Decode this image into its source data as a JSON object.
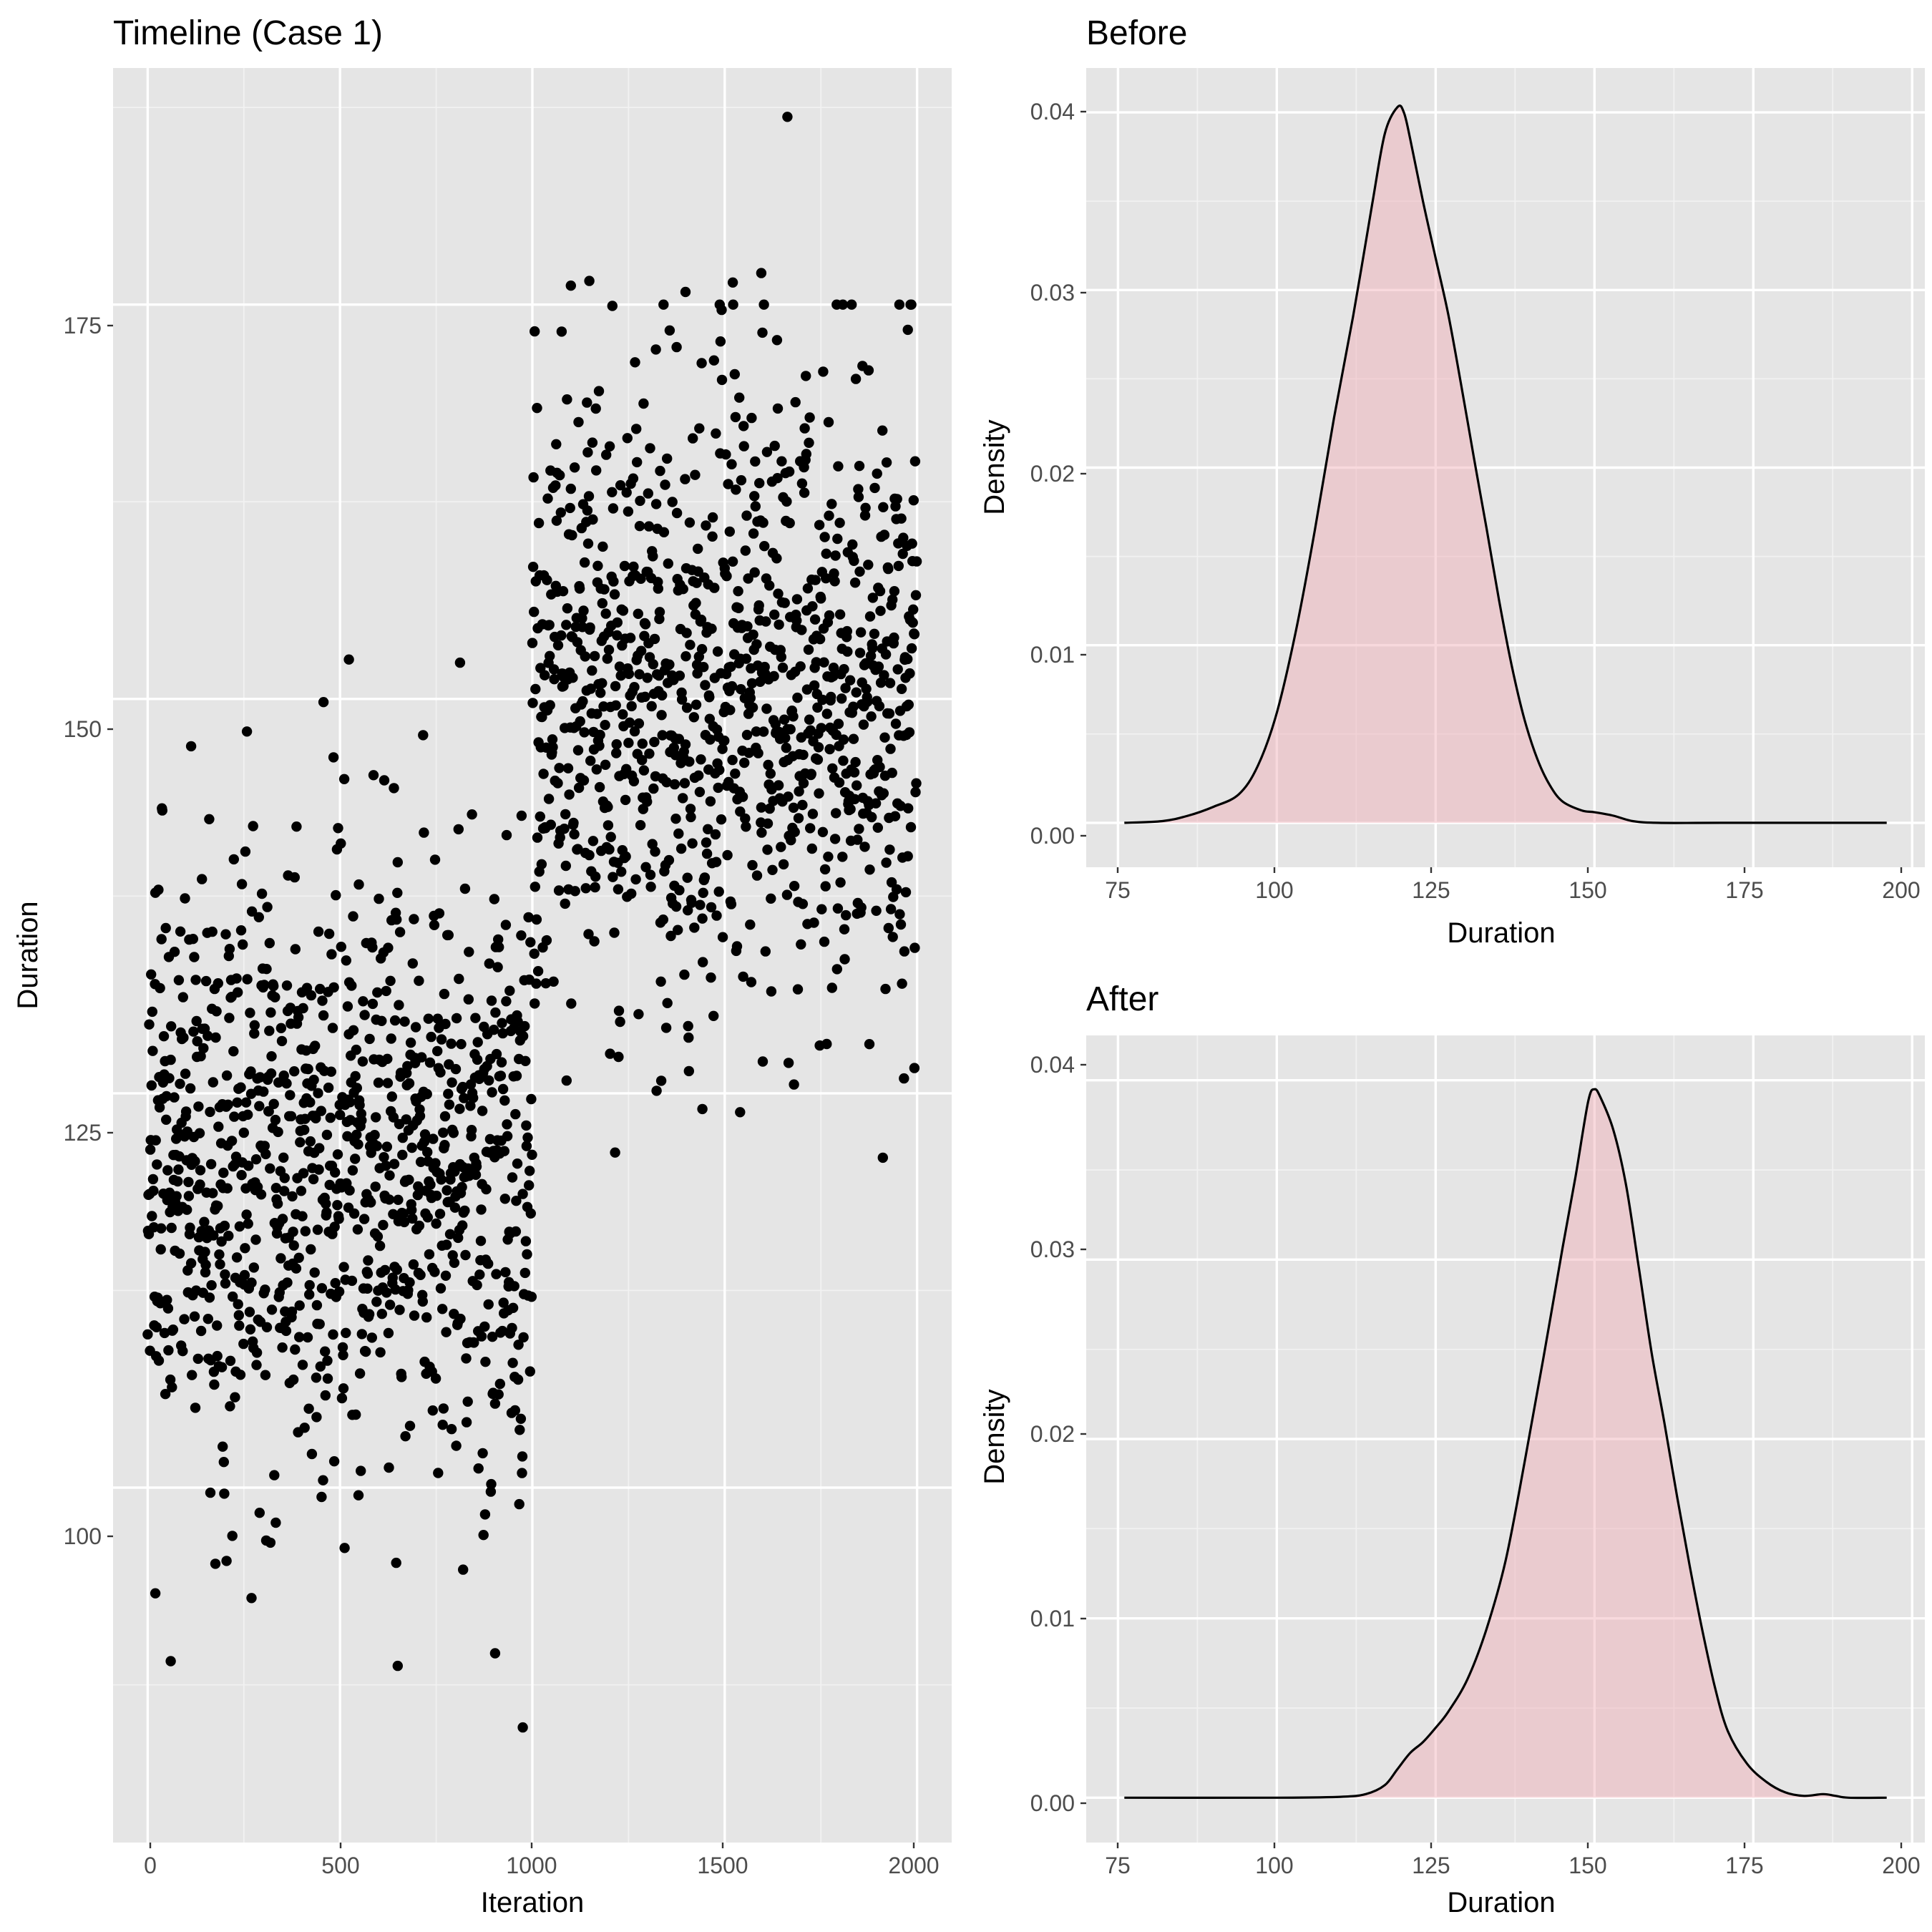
{
  "chart_data": [
    {
      "type": "scatter",
      "title": "Timeline (Case 1)",
      "xlabel": "Iteration",
      "ylabel": "Duration",
      "xlim": [
        -90,
        2090
      ],
      "ylim": [
        77.5,
        190
      ],
      "xticks": [
        0,
        500,
        1000,
        1500,
        2000
      ],
      "yticks": [
        100,
        125,
        150,
        175
      ],
      "grid": true,
      "legend": "none",
      "series": [
        {
          "color": "#000000",
          "segments": [
            {
              "from": 0,
              "to": 999,
              "mean": 120,
              "sd": 9.5
            },
            {
              "from": 1000,
              "to": 1999,
              "mean": 150,
              "sd": 10
            }
          ],
          "points": [
            [
              60,
              89
            ],
            [
              650,
              88.7
            ],
            [
              975,
              84.8
            ],
            [
              903,
              89.5
            ],
            [
              270,
              93
            ],
            [
              20,
              93.3
            ],
            [
              820,
              94.8
            ],
            [
              1663,
              186.9
            ],
            [
              1595,
              177
            ],
            [
              1148,
              176.5
            ],
            [
              1100,
              176.2
            ],
            [
              1521,
              176.4
            ],
            [
              1398,
              175.8
            ],
            [
              1976,
              173.4
            ],
            [
              1006,
              173.3
            ],
            [
              457,
              149.8
            ],
            [
              523,
              152.5
            ],
            [
              812,
              152.3
            ],
            [
              113,
              147
            ],
            [
              1540,
              123.8
            ],
            [
              1442,
              124
            ],
            [
              1993,
              126.6
            ]
          ]
        }
      ]
    },
    {
      "type": "area",
      "title": "Before",
      "xlabel": "Duration",
      "ylabel": "Density",
      "xlim": [
        70,
        202
      ],
      "ylim": [
        -0.0025,
        0.0425
      ],
      "xticks": [
        75,
        100,
        125,
        150,
        175,
        200
      ],
      "yticks": [
        "0.00",
        "0.01",
        "0.02",
        "0.03",
        "0.04"
      ],
      "grid": true,
      "legend": "none",
      "fill_color": "#f0aab4",
      "x": [
        76,
        82,
        86,
        90,
        94,
        97,
        100,
        103,
        106,
        109,
        112,
        115,
        117,
        119,
        120,
        121,
        123,
        125,
        127,
        129,
        131,
        133,
        135,
        137,
        139,
        141,
        143,
        145,
        148,
        150,
        153,
        156,
        160,
        170,
        196
      ],
      "values": [
        0,
        0.0001,
        0.0004,
        0.0009,
        0.0016,
        0.0032,
        0.0062,
        0.0108,
        0.0165,
        0.0228,
        0.0285,
        0.0348,
        0.0388,
        0.0403,
        0.04,
        0.0385,
        0.035,
        0.0318,
        0.0286,
        0.0247,
        0.0206,
        0.0166,
        0.0125,
        0.0088,
        0.0058,
        0.0036,
        0.0021,
        0.0012,
        0.0007,
        0.0006,
        0.0004,
        0.0001,
        0,
        0,
        0
      ]
    },
    {
      "type": "area",
      "title": "After",
      "xlabel": "Duration",
      "ylabel": "Density",
      "xlim": [
        70,
        202
      ],
      "ylim": [
        -0.0025,
        0.0425
      ],
      "xticks": [
        75,
        100,
        125,
        150,
        175,
        200
      ],
      "yticks": [
        "0.00",
        "0.01",
        "0.02",
        "0.03",
        "0.04"
      ],
      "grid": true,
      "legend": "none",
      "fill_color": "#f0aab4",
      "x": [
        76,
        100,
        110,
        114,
        117,
        119,
        121,
        123,
        125,
        127,
        130,
        133,
        136,
        139,
        142,
        145,
        147,
        149,
        150,
        151,
        153,
        155,
        157,
        159,
        161,
        163,
        165,
        167,
        169,
        171,
        174,
        177,
        180,
        183,
        186,
        188,
        190,
        196
      ],
      "values": [
        0,
        0,
        5e-05,
        0.0002,
        0.0007,
        0.0016,
        0.0025,
        0.0031,
        0.0039,
        0.0048,
        0.0066,
        0.0094,
        0.0132,
        0.0187,
        0.0246,
        0.0307,
        0.0346,
        0.0388,
        0.0395,
        0.039,
        0.0372,
        0.0341,
        0.0295,
        0.0248,
        0.0209,
        0.0168,
        0.0129,
        0.0093,
        0.0061,
        0.0037,
        0.0019,
        0.0009,
        0.0003,
        0.0001,
        0.0002,
        0.0001,
        0,
        0
      ]
    }
  ]
}
